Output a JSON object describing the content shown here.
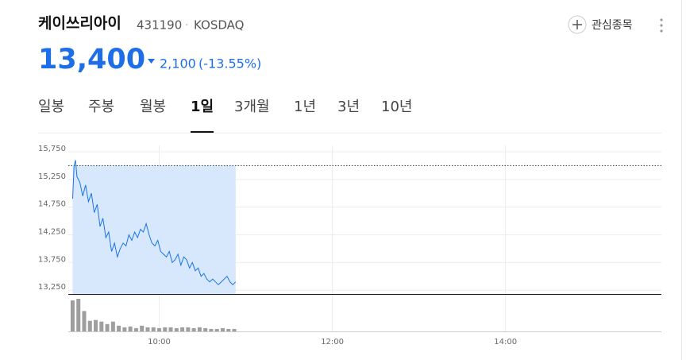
{
  "header": {
    "name": "케이쓰리아이",
    "code": "431190",
    "separator": "·",
    "market": "KOSDAQ",
    "price": "13,400",
    "change": "2,100",
    "change_pct": "(-13.55%)",
    "watch": "관심종목"
  },
  "tabs": {
    "items": [
      "일봉",
      "주봉",
      "월봉",
      "1일",
      "3개월",
      "1년",
      "3년",
      "10년"
    ],
    "active": 3
  },
  "chart_data": {
    "type": "line",
    "xlim": [
      537,
      948
    ],
    "xticks": [
      {
        "value": 600,
        "label": "10:00"
      },
      {
        "value": 720,
        "label": "12:00"
      },
      {
        "value": 840,
        "label": "14:00"
      }
    ],
    "ylim": [
      13180,
      15865
    ],
    "yticks": [
      {
        "value": 13250,
        "label": "13,250"
      },
      {
        "value": 13750,
        "label": "13,750"
      },
      {
        "value": 14250,
        "label": "14,250"
      },
      {
        "value": 14750,
        "label": "14,750"
      },
      {
        "value": 15250,
        "label": "15,250"
      },
      {
        "value": 15750,
        "label": "15,750"
      }
    ],
    "grid": true,
    "reference": 15500,
    "price": {
      "color": "#1a73e8",
      "fill": "#d7e8fc",
      "x": [
        540,
        541,
        542,
        543,
        545,
        547,
        549,
        551,
        553,
        555,
        557,
        559,
        561,
        563,
        565,
        567,
        569,
        571,
        573,
        575,
        577,
        579,
        581,
        583,
        585,
        587,
        589,
        591,
        593,
        595,
        597,
        599,
        601,
        603,
        605,
        607,
        609,
        611,
        613,
        615,
        617,
        619,
        621,
        623,
        625,
        627,
        629,
        631,
        633,
        635,
        637,
        639,
        641,
        643,
        645,
        647,
        649,
        651,
        653
      ],
      "values": [
        14900,
        15500,
        15600,
        15300,
        15200,
        14950,
        15150,
        14850,
        15000,
        14650,
        14800,
        14400,
        14550,
        14200,
        14300,
        13950,
        14100,
        13850,
        14000,
        14100,
        14050,
        14250,
        14150,
        14300,
        14200,
        14350,
        14300,
        14450,
        14250,
        14100,
        14050,
        14150,
        13950,
        13900,
        13850,
        13950,
        13750,
        13800,
        13900,
        13700,
        13850,
        13800,
        13650,
        13750,
        13600,
        13650,
        13500,
        13550,
        13450,
        13400,
        13450,
        13400,
        13350,
        13400,
        13450,
        13500,
        13400,
        13350,
        13400
      ]
    },
    "volume": {
      "color": "#9e9e9e",
      "x": [
        540,
        544,
        548,
        552,
        556,
        560,
        564,
        568,
        572,
        576,
        580,
        584,
        588,
        592,
        596,
        600,
        604,
        608,
        612,
        616,
        620,
        624,
        628,
        632,
        636,
        640,
        644,
        648,
        652
      ],
      "values": [
        38,
        40,
        25,
        13,
        14,
        12,
        9,
        12,
        7,
        5,
        6,
        4,
        7,
        5,
        5,
        4,
        5,
        5,
        4,
        5,
        5,
        4,
        5,
        4,
        3,
        3,
        4,
        3,
        3
      ]
    }
  }
}
